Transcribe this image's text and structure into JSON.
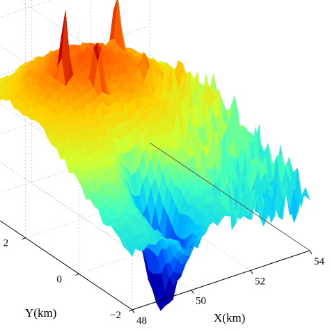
{
  "chart_data": {
    "type": "surface3d",
    "title": "",
    "xlabel": "X(km)",
    "ylabel": "Y(km)",
    "zlabel": "",
    "x_ticks": [
      "48",
      "50",
      "52",
      "54"
    ],
    "y_ticks": [
      "-2",
      "0",
      "2"
    ],
    "xlim": [
      48,
      54
    ],
    "ylim": [
      -2,
      4
    ],
    "grid": true,
    "colormap": "jet",
    "colormap_stops": [
      "#0000b0",
      "#0050ff",
      "#00c8ff",
      "#40ffc0",
      "#d0ff30",
      "#ffd000",
      "#ff6000",
      "#c00000"
    ],
    "surface_description_values": {
      "plateau_level": 0.72,
      "peak_positions_xy_km": [
        [
          49.3,
          2.0
        ],
        [
          49.9,
          1.4
        ],
        [
          51.8,
          2.8
        ]
      ],
      "peak_relative_heights": [
        0.95,
        0.8,
        0.85
      ],
      "trench_center_xy_km": [
        50.0,
        -0.8
      ],
      "trench_relative_depth": -0.8,
      "noisy_edge_x_range_km": [
        51.5,
        54.0
      ]
    }
  }
}
